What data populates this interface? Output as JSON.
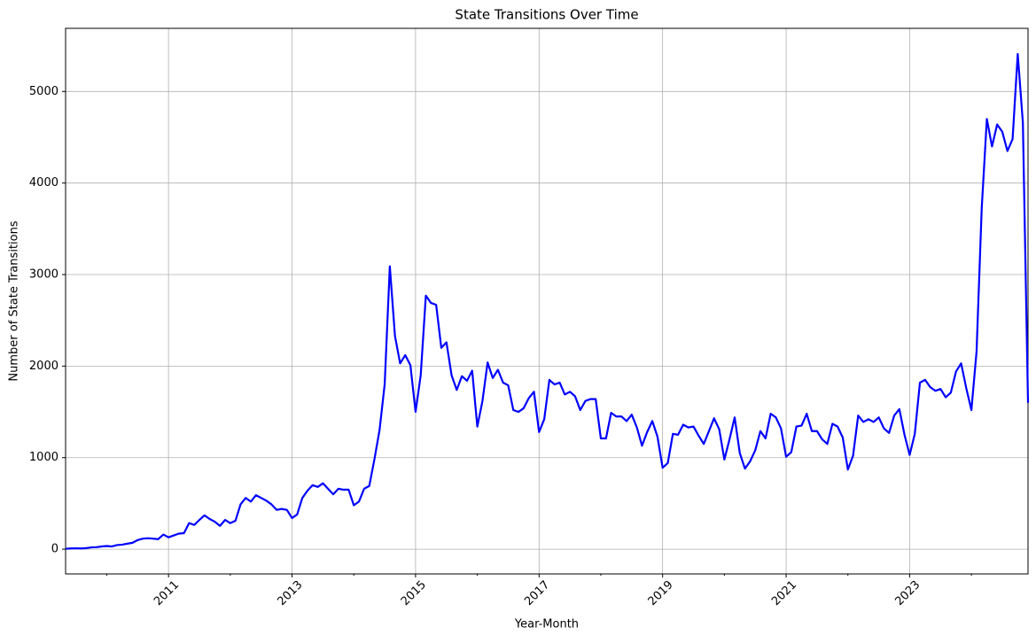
{
  "chart_data": {
    "type": "line",
    "title": "State Transitions Over Time",
    "xlabel": "Year-Month",
    "ylabel": "Number of State Transitions",
    "color": "#0000ff",
    "grid": true,
    "x": [
      "2009-05",
      "2009-06",
      "2009-07",
      "2009-08",
      "2009-09",
      "2009-10",
      "2009-11",
      "2009-12",
      "2010-01",
      "2010-02",
      "2010-03",
      "2010-04",
      "2010-05",
      "2010-06",
      "2010-07",
      "2010-08",
      "2010-09",
      "2010-10",
      "2010-11",
      "2010-12",
      "2011-01",
      "2011-02",
      "2011-03",
      "2011-04",
      "2011-05",
      "2011-06",
      "2011-07",
      "2011-08",
      "2011-09",
      "2011-10",
      "2011-11",
      "2011-12",
      "2012-01",
      "2012-02",
      "2012-03",
      "2012-04",
      "2012-05",
      "2012-06",
      "2012-07",
      "2012-08",
      "2012-09",
      "2012-10",
      "2012-11",
      "2012-12",
      "2013-01",
      "2013-02",
      "2013-03",
      "2013-04",
      "2013-05",
      "2013-06",
      "2013-07",
      "2013-08",
      "2013-09",
      "2013-10",
      "2013-11",
      "2013-12",
      "2014-01",
      "2014-02",
      "2014-03",
      "2014-04",
      "2014-05",
      "2014-06",
      "2014-07",
      "2014-08",
      "2014-09",
      "2014-10",
      "2014-11",
      "2014-12",
      "2015-01",
      "2015-02",
      "2015-03",
      "2015-04",
      "2015-05",
      "2015-06",
      "2015-07",
      "2015-08",
      "2015-09",
      "2015-10",
      "2015-11",
      "2015-12",
      "2016-01",
      "2016-02",
      "2016-03",
      "2016-04",
      "2016-05",
      "2016-06",
      "2016-07",
      "2016-08",
      "2016-09",
      "2016-10",
      "2016-11",
      "2016-12",
      "2017-01",
      "2017-02",
      "2017-03",
      "2017-04",
      "2017-05",
      "2017-06",
      "2017-07",
      "2017-08",
      "2017-09",
      "2017-10",
      "2017-11",
      "2017-12",
      "2018-01",
      "2018-02",
      "2018-03",
      "2018-04",
      "2018-05",
      "2018-06",
      "2018-07",
      "2018-08",
      "2018-09",
      "2018-10",
      "2018-11",
      "2018-12",
      "2019-01",
      "2019-02",
      "2019-03",
      "2019-04",
      "2019-05",
      "2019-06",
      "2019-07",
      "2019-08",
      "2019-09",
      "2019-10",
      "2019-11",
      "2019-12",
      "2020-01",
      "2020-02",
      "2020-03",
      "2020-04",
      "2020-05",
      "2020-06",
      "2020-07",
      "2020-08",
      "2020-09",
      "2020-10",
      "2020-11",
      "2020-12",
      "2021-01",
      "2021-02",
      "2021-03",
      "2021-04",
      "2021-05",
      "2021-06",
      "2021-07",
      "2021-08",
      "2021-09",
      "2021-10",
      "2021-11",
      "2021-12",
      "2022-01",
      "2022-02",
      "2022-03",
      "2022-04",
      "2022-05",
      "2022-06",
      "2022-07",
      "2022-08",
      "2022-09",
      "2022-10",
      "2022-11",
      "2022-12",
      "2023-01",
      "2023-02",
      "2023-03",
      "2023-04",
      "2023-05",
      "2023-06",
      "2023-07",
      "2023-08",
      "2023-09",
      "2023-10",
      "2023-11",
      "2023-12",
      "2024-01",
      "2024-02",
      "2024-03",
      "2024-04",
      "2024-05",
      "2024-06",
      "2024-07",
      "2024-08",
      "2024-09",
      "2024-10",
      "2024-11",
      "2024-12"
    ],
    "values": [
      5,
      8,
      10,
      8,
      12,
      20,
      22,
      30,
      35,
      30,
      45,
      50,
      60,
      70,
      100,
      115,
      120,
      115,
      110,
      160,
      130,
      150,
      170,
      175,
      285,
      265,
      320,
      370,
      330,
      300,
      255,
      320,
      285,
      310,
      490,
      560,
      520,
      590,
      560,
      530,
      490,
      430,
      440,
      430,
      340,
      380,
      560,
      640,
      700,
      680,
      720,
      660,
      600,
      660,
      650,
      650,
      480,
      520,
      660,
      690,
      980,
      1300,
      1800,
      3090,
      2330,
      2030,
      2120,
      2010,
      1500,
      1900,
      2770,
      2690,
      2670,
      2200,
      2260,
      1900,
      1740,
      1890,
      1840,
      1950,
      1340,
      1620,
      2040,
      1870,
      1960,
      1820,
      1790,
      1520,
      1500,
      1540,
      1650,
      1720,
      1280,
      1420,
      1850,
      1800,
      1820,
      1690,
      1720,
      1670,
      1520,
      1620,
      1640,
      1640,
      1210,
      1210,
      1490,
      1450,
      1450,
      1400,
      1470,
      1330,
      1130,
      1280,
      1400,
      1230,
      890,
      940,
      1260,
      1250,
      1360,
      1330,
      1340,
      1240,
      1150,
      1290,
      1430,
      1310,
      980,
      1200,
      1440,
      1050,
      880,
      960,
      1080,
      1290,
      1210,
      1480,
      1440,
      1320,
      1010,
      1060,
      1340,
      1350,
      1480,
      1290,
      1290,
      1200,
      1150,
      1370,
      1340,
      1220,
      870,
      1020,
      1460,
      1390,
      1420,
      1390,
      1440,
      1320,
      1270,
      1460,
      1530,
      1250,
      1030,
      1260,
      1820,
      1850,
      1770,
      1730,
      1750,
      1660,
      1710,
      1940,
      2030,
      1760,
      1520,
      2160,
      3720,
      4700,
      4400,
      4640,
      4560,
      4350,
      4480,
      5410,
      4660,
      1600
    ],
    "xlim": [
      "2009-05",
      "2024-12"
    ],
    "xticks": [
      "2011",
      "2013",
      "2015",
      "2017",
      "2019",
      "2021",
      "2023"
    ],
    "xminorticks": [
      "2010",
      "2012",
      "2014",
      "2016",
      "2018",
      "2020",
      "2022",
      "2024"
    ],
    "ylim": [
      -270,
      5690
    ],
    "yticks": [
      0,
      1000,
      2000,
      3000,
      4000,
      5000
    ]
  }
}
